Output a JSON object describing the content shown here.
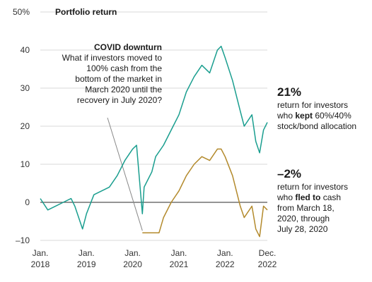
{
  "chart_data": {
    "type": "line",
    "title": "Portfolio return",
    "ylim": [
      -10,
      50
    ],
    "y_ticks": [
      "50%",
      "40",
      "30",
      "20",
      "10",
      "0",
      "–10"
    ],
    "x_ticks": [
      {
        "top": "Jan.",
        "bottom": "2018"
      },
      {
        "top": "Jan.",
        "bottom": "2019"
      },
      {
        "top": "Jan.",
        "bottom": "2020"
      },
      {
        "top": "Jan.",
        "bottom": "2021"
      },
      {
        "top": "Jan.",
        "bottom": "2022"
      },
      {
        "top": "Dec.",
        "bottom": "2022"
      }
    ],
    "series": [
      {
        "key": "kept",
        "color": "#1a9e8f",
        "x": [
          "2018-01",
          "2018-03",
          "2018-05",
          "2018-07",
          "2018-09",
          "2018-10",
          "2018-12",
          "2019-01",
          "2019-03",
          "2019-05",
          "2019-07",
          "2019-09",
          "2019-11",
          "2020-01",
          "2020-02",
          "2020-03-18",
          "2020-04",
          "2020-06",
          "2020-07",
          "2020-09",
          "2020-11",
          "2021-01",
          "2021-03",
          "2021-05",
          "2021-07",
          "2021-09",
          "2021-11",
          "2021-12",
          "2022-01",
          "2022-03",
          "2022-05",
          "2022-06",
          "2022-08",
          "2022-09",
          "2022-10",
          "2022-11",
          "2022-12"
        ],
        "values": [
          1,
          -2,
          -1,
          0,
          1,
          -1,
          -7,
          -3,
          2,
          3,
          4,
          7,
          11,
          14,
          15,
          -3,
          4,
          8,
          12,
          15,
          19,
          23,
          29,
          33,
          36,
          34,
          40,
          41,
          38,
          32,
          24,
          20,
          23,
          16,
          13,
          19,
          21
        ]
      },
      {
        "key": "fled",
        "color": "#b38a2c",
        "x": [
          "2020-03-18",
          "2020-06",
          "2020-07-28",
          "2020-09",
          "2020-11",
          "2021-01",
          "2021-03",
          "2021-05",
          "2021-07",
          "2021-09",
          "2021-11",
          "2021-12",
          "2022-01",
          "2022-03",
          "2022-05",
          "2022-06",
          "2022-08",
          "2022-09",
          "2022-10",
          "2022-11",
          "2022-12"
        ],
        "values": [
          -8,
          -8,
          -8,
          -4,
          0,
          3,
          7,
          10,
          12,
          11,
          14,
          14,
          12,
          7,
          -1,
          -4,
          -1,
          -7,
          -9,
          -1,
          -2
        ]
      }
    ],
    "annotation": {
      "title": "COVID downturn",
      "lines": [
        "What if investors moved to",
        "100% cash from the",
        "bottom of the market in",
        "March 2020 until the",
        "recovery in July 2020?"
      ]
    },
    "kept_callout": {
      "value": "21%",
      "line1": "return for investors",
      "line2_pre": "who ",
      "line2_bold": "kept",
      "line2_post": " 60%/40%",
      "line3": "stock/bond allocation"
    },
    "fled_callout": {
      "value": "–2%",
      "line1": "return for investors",
      "line2_pre": "who ",
      "line2_bold": "fled to",
      "line2_post": " cash",
      "line3": "from March 18,",
      "line4": "2020, through",
      "line5": "July 28, 2020"
    }
  }
}
